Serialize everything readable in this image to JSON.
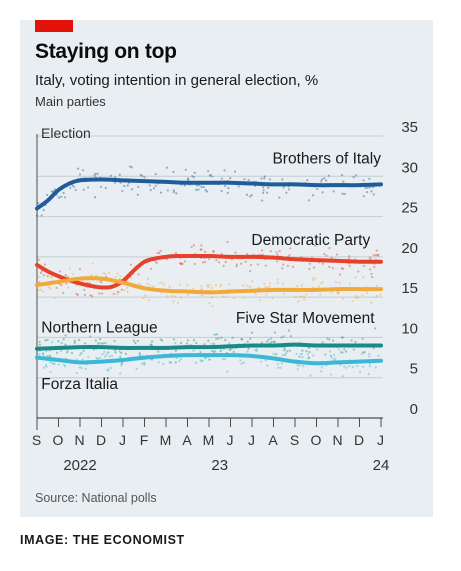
{
  "header": {
    "title": "Staying on top",
    "subtitle": "Italy, voting intention in general election, %",
    "subtitle2": "Main parties"
  },
  "source": "Source: National polls",
  "credit": "IMAGE: THE ECONOMIST",
  "colors": {
    "background": "#e8eef1",
    "accent": "#e3120b",
    "grid": "#c3cdd2",
    "axis": "#4d4d4d"
  },
  "chart_data": {
    "type": "line",
    "title": "Staying on top",
    "ylim": [
      0,
      35
    ],
    "yticks": [
      0,
      5,
      10,
      15,
      20,
      25,
      30,
      35
    ],
    "xlim": [
      0,
      16
    ],
    "x_month_labels": [
      "S",
      "O",
      "N",
      "D",
      "J",
      "F",
      "M",
      "A",
      "M",
      "J",
      "J",
      "A",
      "S",
      "O",
      "N",
      "D",
      "J"
    ],
    "x_year_labels": [
      {
        "label": "2022",
        "x": 2
      },
      {
        "label": "23",
        "x": 8.5
      },
      {
        "label": "24",
        "x": 16
      }
    ],
    "annotation": {
      "label": "Election",
      "x": 0
    },
    "grid": true,
    "series": [
      {
        "name": "Brothers of Italy",
        "color": "#1f5c99",
        "x": [
          0,
          0.5,
          1,
          1.5,
          2,
          3,
          4,
          5,
          6,
          7,
          8,
          9,
          10,
          11,
          12,
          13,
          14,
          15,
          16
        ],
        "y": [
          26,
          27,
          28.3,
          29.1,
          29.5,
          29.6,
          29.5,
          29.4,
          29.3,
          29.2,
          29.2,
          29.2,
          29.1,
          29.0,
          29.0,
          28.9,
          28.9,
          28.9,
          29.0
        ]
      },
      {
        "name": "Democratic Party",
        "color": "#e8412b",
        "x": [
          0,
          0.5,
          1,
          1.5,
          2,
          2.5,
          3,
          3.5,
          4,
          4.5,
          5,
          5.5,
          6,
          6.5,
          7,
          8,
          9,
          10,
          11,
          12,
          13,
          14,
          15,
          16
        ],
        "y": [
          19,
          18.2,
          17.6,
          17.1,
          16.7,
          16.4,
          16.2,
          16.3,
          17,
          18.3,
          19.4,
          19.8,
          20.0,
          20.1,
          20.1,
          20.1,
          20.0,
          20.0,
          19.9,
          19.7,
          19.6,
          19.5,
          19.4,
          19.4
        ]
      },
      {
        "name": "Five Star Movement",
        "color": "#f2a93b",
        "x": [
          0,
          1,
          2,
          3,
          4,
          5,
          6,
          7,
          8,
          9,
          10,
          11,
          12,
          13,
          14,
          15,
          16
        ],
        "y": [
          16.5,
          16.9,
          17.3,
          17.3,
          16.8,
          16.1,
          15.8,
          15.7,
          15.6,
          15.7,
          15.8,
          15.9,
          15.9,
          15.9,
          16.0,
          16.0,
          16.0
        ]
      },
      {
        "name": "Northern League",
        "color": "#1a8a87",
        "x": [
          0,
          1,
          2,
          3,
          4,
          5,
          6,
          7,
          8,
          9,
          10,
          11,
          12,
          13,
          14,
          15,
          16
        ],
        "y": [
          8.6,
          8.7,
          8.8,
          8.8,
          8.7,
          8.7,
          8.7,
          8.8,
          8.8,
          8.9,
          9.0,
          9.0,
          9.1,
          9.0,
          9.0,
          9.0,
          9.0
        ]
      },
      {
        "name": "Forza Italia",
        "color": "#3cb8d6",
        "x": [
          0,
          1,
          2,
          3,
          4,
          5,
          6,
          7,
          8,
          9,
          10,
          11,
          12,
          13,
          14,
          15,
          16
        ],
        "y": [
          7.5,
          7.2,
          6.9,
          7.0,
          7.2,
          7.5,
          7.7,
          7.8,
          7.8,
          7.8,
          7.7,
          7.4,
          7.0,
          6.8,
          6.9,
          7.0,
          7.1
        ]
      }
    ],
    "series_labels": [
      {
        "name": "Brothers of Italy",
        "anchor": "end",
        "x": 16,
        "y": 31.6
      },
      {
        "name": "Democratic Party",
        "anchor": "end",
        "x": 15.5,
        "y": 21.5
      },
      {
        "name": "Five Star Movement",
        "anchor": "end",
        "x": 15.7,
        "y": 11.8
      },
      {
        "name": "Northern League",
        "anchor": "start",
        "x": 0.2,
        "y": 10.6
      },
      {
        "name": "Forza Italia",
        "anchor": "start",
        "x": 0.2,
        "y": 3.6
      }
    ]
  }
}
